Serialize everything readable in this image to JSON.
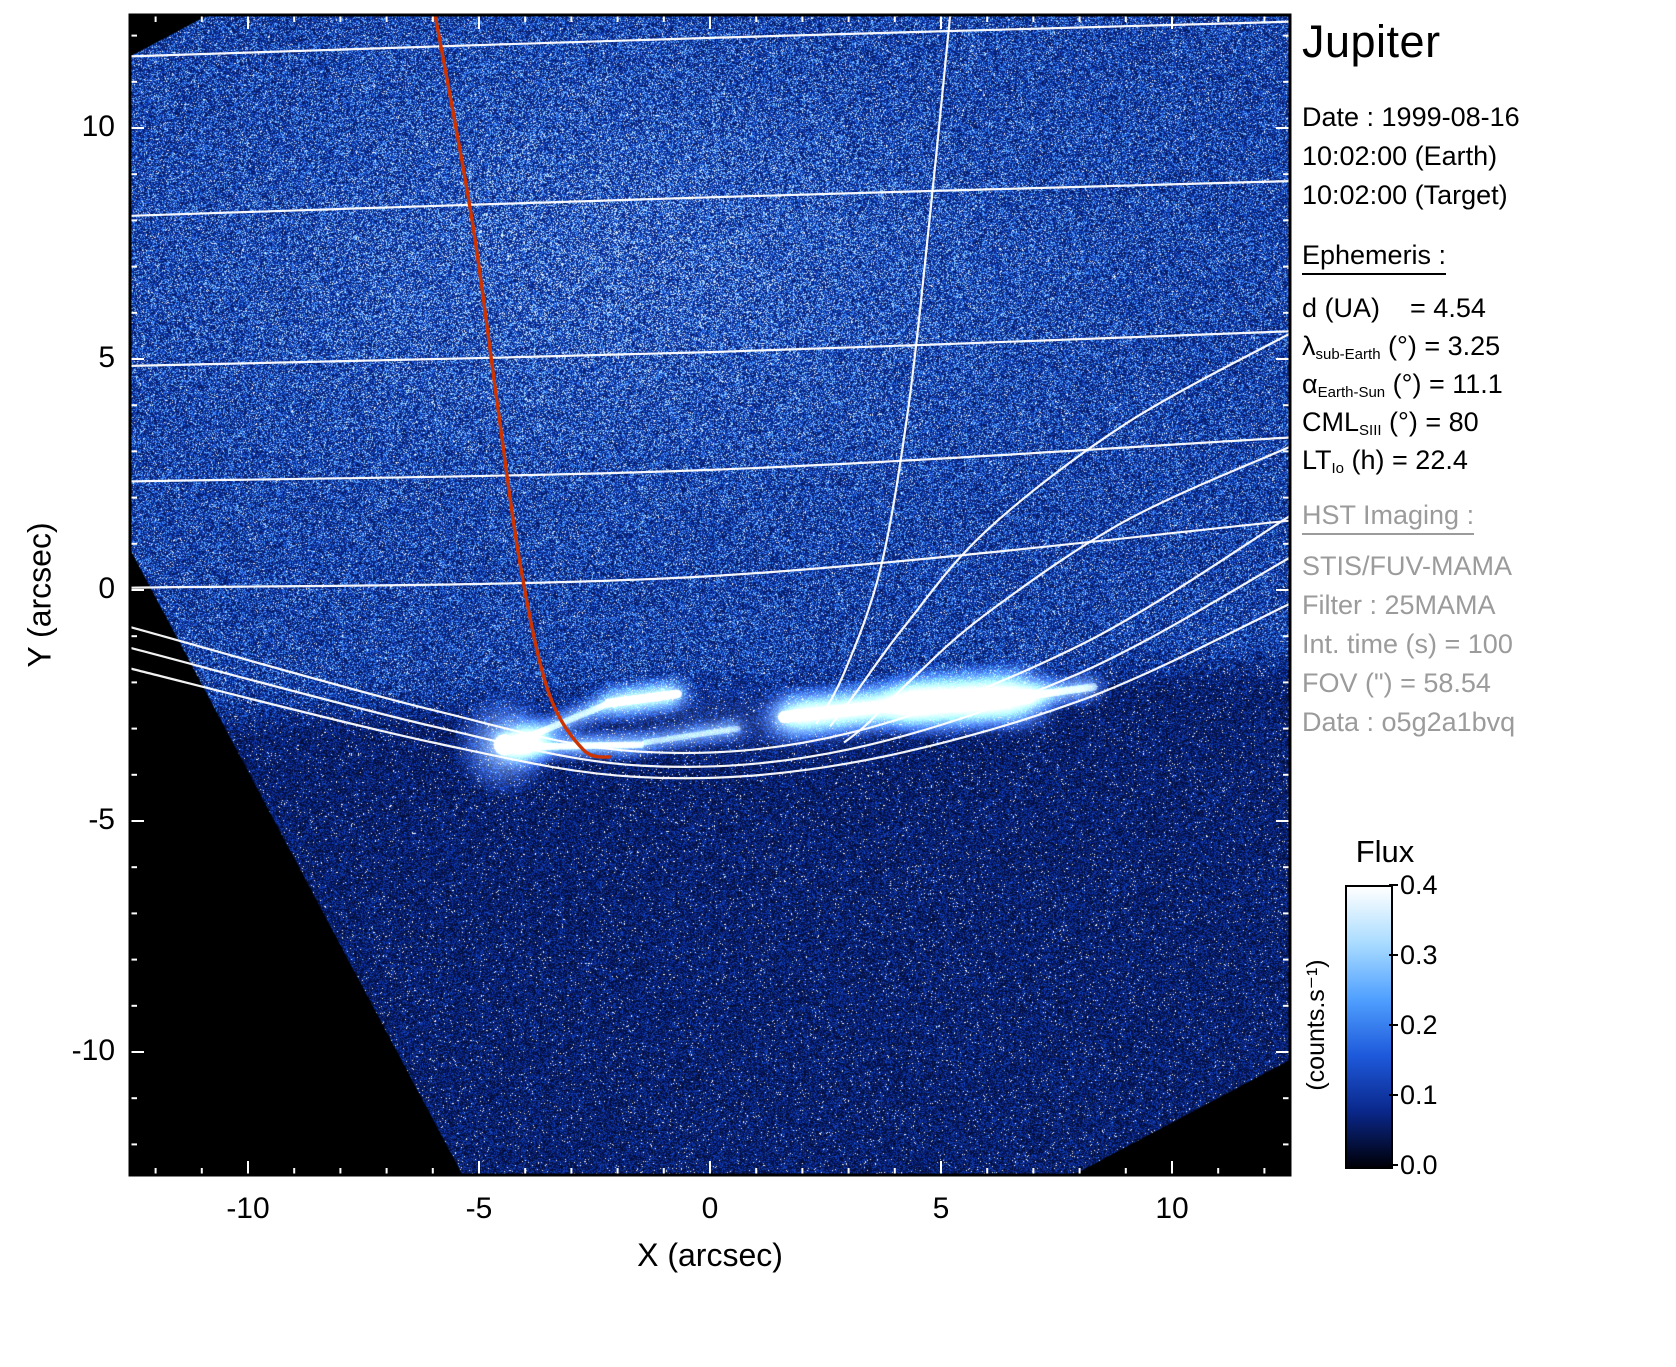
{
  "title": "Jupiter",
  "colors": {
    "accent_red": "#cc3300",
    "grid_white": "#ffffff",
    "panel_gray": "#9b9b9b",
    "plot_background": "#000000",
    "page_background": "#ffffff"
  },
  "observation": {
    "date": "Date : 1999-08-16",
    "time_earth": "10:02:00 (Earth)",
    "time_target": "10:02:00 (Target)"
  },
  "ephemeris": {
    "heading": "Ephemeris :",
    "rows": [
      {
        "sym": "d",
        "sub": "",
        "rest": " (UA)    = 4.54"
      },
      {
        "sym": "λ",
        "sub": "sub-Earth",
        "rest": " (°) = 3.25"
      },
      {
        "sym": "α",
        "sub": "Earth-Sun",
        "rest": " (°) = 11.1"
      },
      {
        "sym": "CML",
        "sub": "SIII",
        "rest": " (°) = 80"
      },
      {
        "sym": "LT",
        "sub": "Io",
        "rest": " (h) = 22.4"
      }
    ]
  },
  "hst": {
    "heading": "HST Imaging :",
    "lines": [
      "STIS/FUV-MAMA",
      "Filter : 25MAMA",
      "Int. time (s) = 100",
      "FOV (\") = 58.54",
      "Data : o5g2a1bvq"
    ]
  },
  "colorbar": {
    "title": "Flux",
    "unit": "(counts.s⁻¹)",
    "min": 0.0,
    "max": 0.4,
    "ticks": [
      0.0,
      0.1,
      0.2,
      0.3,
      0.4
    ]
  },
  "axes": {
    "xlabel": "X (arcsec)",
    "ylabel": "Y (arcsec)",
    "xticks": [
      -10,
      -5,
      0,
      5,
      10
    ],
    "yticks": [
      -10,
      -5,
      0,
      5,
      10
    ],
    "xlim": [
      -12.55,
      12.55
    ],
    "ylim": [
      -12.66,
      12.45
    ]
  },
  "chart_data": {
    "type": "heatmap",
    "title": "Jupiter",
    "xlabel": "X (arcsec)",
    "ylabel": "Y (arcsec)",
    "xlim": [
      -12.55,
      12.55
    ],
    "ylim": [
      -12.66,
      12.45
    ],
    "xticks": [
      -10,
      -5,
      0,
      5,
      10
    ],
    "yticks": [
      -10,
      -5,
      0,
      5,
      10
    ],
    "flux_range": [
      0.0,
      0.4
    ],
    "flux_unit": "counts.s⁻¹",
    "colormap": "black-blue-white",
    "detector_rotation_deg": 28,
    "background_levels": {
      "disk_counts": 0.17,
      "sky_counts": 0.09
    },
    "graticule": {
      "parallels": [
        [
          [
            -12.55,
            11.55
          ],
          [
            0,
            11.95
          ],
          [
            12.55,
            12.3
          ]
        ],
        [
          [
            -12.55,
            8.1
          ],
          [
            0,
            8.5
          ],
          [
            12.55,
            8.85
          ]
        ],
        [
          [
            -12.55,
            4.85
          ],
          [
            0,
            5.15
          ],
          [
            12.55,
            5.6
          ]
        ],
        [
          [
            -12.55,
            2.35
          ],
          [
            0,
            2.6
          ],
          [
            12.55,
            3.3
          ]
        ],
        [
          [
            -12.55,
            0.05
          ],
          [
            0,
            0.3
          ],
          [
            12.55,
            1.5
          ]
        ]
      ],
      "limb_arcs": [
        [
          [
            -12.55,
            -0.8
          ],
          [
            -6,
            -2.6
          ],
          [
            -1.5,
            -3.5
          ],
          [
            3,
            -3.1
          ],
          [
            8,
            -1.2
          ],
          [
            12.55,
            1.6
          ]
        ],
        [
          [
            -12.55,
            -1.25
          ],
          [
            -6,
            -2.95
          ],
          [
            -1.5,
            -3.8
          ],
          [
            3,
            -3.45
          ],
          [
            8,
            -1.8
          ],
          [
            12.55,
            0.7
          ]
        ],
        [
          [
            -12.55,
            -1.7
          ],
          [
            -6,
            -3.3
          ],
          [
            -1.5,
            -4.05
          ],
          [
            3,
            -3.75
          ],
          [
            8,
            -2.4
          ],
          [
            12.55,
            -0.3
          ]
        ]
      ],
      "meridians": [
        [
          [
            5.2,
            12.45
          ],
          [
            4.75,
            8
          ],
          [
            4.3,
            4
          ],
          [
            3.7,
            0.5
          ],
          [
            2.9,
            -1.8
          ],
          [
            2.3,
            -2.9
          ]
        ],
        [
          [
            12.55,
            5.55
          ],
          [
            9,
            3.6
          ],
          [
            6,
            1.3
          ],
          [
            4.2,
            -0.8
          ],
          [
            3.1,
            -2.3
          ],
          [
            2.6,
            -2.95
          ]
        ],
        [
          [
            12.55,
            3.1
          ],
          [
            9,
            1.5
          ],
          [
            6,
            -0.5
          ],
          [
            4.4,
            -1.9
          ],
          [
            3.4,
            -2.9
          ],
          [
            2.9,
            -3.3
          ]
        ]
      ]
    },
    "io_track_red": [
      [
        -5.95,
        12.45
      ],
      [
        -5.15,
        8
      ],
      [
        -4.6,
        4
      ],
      [
        -4.1,
        0.5
      ],
      [
        -3.5,
        -2.2
      ],
      [
        -2.75,
        -3.45
      ],
      [
        -2.15,
        -3.62
      ]
    ],
    "aurora": {
      "spots": [
        {
          "x": -4.45,
          "y": -3.35,
          "r": 0.45,
          "i": 1.0
        },
        {
          "x": -4.0,
          "y": -3.3,
          "r": 0.28,
          "i": 0.7
        }
      ],
      "segments": [
        {
          "x1": -4.1,
          "y1": -3.25,
          "x2": -2.3,
          "y2": -2.5,
          "w": 0.16,
          "i": 0.4
        },
        {
          "x1": -2.2,
          "y1": -2.45,
          "x2": -0.7,
          "y2": -2.25,
          "w": 0.2,
          "i": 0.75
        },
        {
          "x1": -4.3,
          "y1": -3.4,
          "x2": -1.5,
          "y2": -3.35,
          "w": 0.16,
          "i": 0.5
        },
        {
          "x1": -1.4,
          "y1": -3.3,
          "x2": 0.6,
          "y2": -3.0,
          "w": 0.14,
          "i": 0.35
        },
        {
          "x1": 1.6,
          "y1": -2.75,
          "x2": 4.4,
          "y2": -2.45,
          "w": 0.28,
          "i": 0.9
        },
        {
          "x1": 4.4,
          "y1": -2.45,
          "x2": 6.9,
          "y2": -2.3,
          "w": 0.34,
          "i": 1.1
        },
        {
          "x1": 7.0,
          "y1": -2.28,
          "x2": 8.3,
          "y2": -2.1,
          "w": 0.18,
          "i": 0.45
        }
      ],
      "diffuse": [
        {
          "x": 0.3,
          "y": -2.9,
          "rx": 5.2,
          "ry": 0.9,
          "i": 0.16
        },
        {
          "x": 5.5,
          "y": -2.4,
          "rx": 2.2,
          "ry": 0.6,
          "i": 0.3
        }
      ]
    }
  }
}
